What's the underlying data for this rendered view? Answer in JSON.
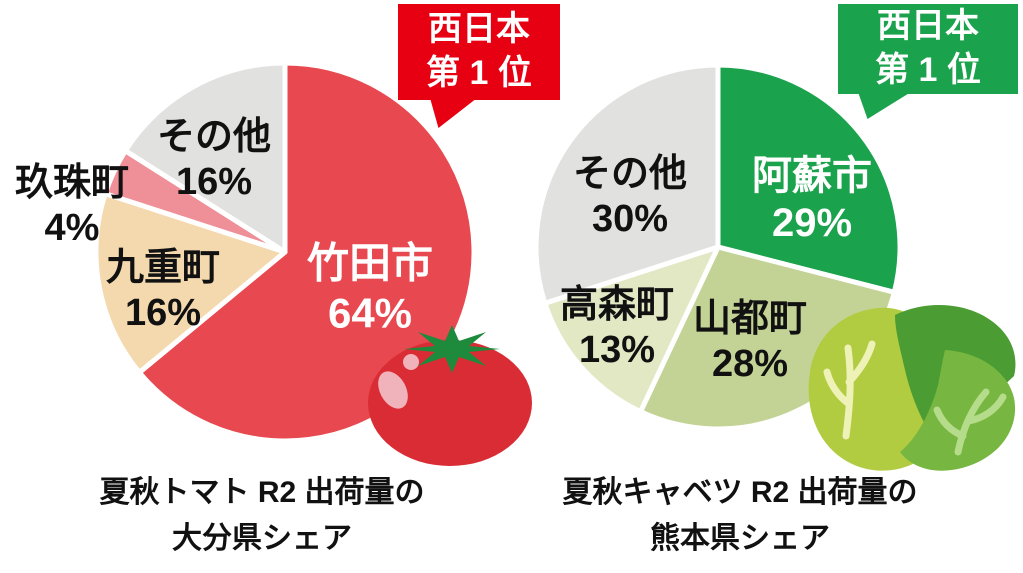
{
  "page": {
    "background": "#ffffff"
  },
  "chart_data": [
    {
      "type": "pie",
      "title": "夏秋トマト R2 出荷量の大分県シェア",
      "title_lines": [
        "夏秋トマト R2 出荷量の",
        "大分県シェア"
      ],
      "values_unit": "%",
      "start_angle": "top",
      "direction": "clockwise",
      "labels_position": "on-slices",
      "slice_divider_color": "#ffffff",
      "slices": [
        {
          "name": "竹田市",
          "value": 64,
          "pct": "64%",
          "color": "#e8484f",
          "text_color": "#ffffff"
        },
        {
          "name": "九重町",
          "value": 16,
          "pct": "16%",
          "color": "#f4d9af",
          "text_color": "#111111"
        },
        {
          "name": "玖珠町",
          "value": 4,
          "pct": "4%",
          "color": "#ef8f97",
          "text_color": "#111111"
        },
        {
          "name": "その他",
          "value": 16,
          "pct": "16%",
          "color": "#e1e1df",
          "text_color": "#111111"
        }
      ],
      "badge": {
        "lines": [
          "西日本",
          "第 1 位"
        ],
        "color": "#e60012",
        "text_color": "#ffffff"
      }
    },
    {
      "type": "pie",
      "title": "夏秋キャベツ R2 出荷量の熊本県シェア",
      "title_lines": [
        "夏秋キャベツ R2 出荷量の",
        "熊本県シェア"
      ],
      "values_unit": "%",
      "start_angle": "top",
      "direction": "clockwise",
      "labels_position": "on-slices",
      "slice_divider_color": "#ffffff",
      "slices": [
        {
          "name": "阿蘇市",
          "value": 29,
          "pct": "29%",
          "color": "#1ba24c",
          "text_color": "#ffffff"
        },
        {
          "name": "山都町",
          "value": 28,
          "pct": "28%",
          "color": "#c3d396",
          "text_color": "#111111"
        },
        {
          "name": "高森町",
          "value": 13,
          "pct": "13%",
          "color": "#e2e8c4",
          "text_color": "#111111"
        },
        {
          "name": "その他",
          "value": 30,
          "pct": "30%",
          "color": "#e1e1df",
          "text_color": "#111111"
        }
      ],
      "badge": {
        "lines": [
          "西日本",
          "第 1 位"
        ],
        "color": "#1ba24c",
        "text_color": "#ffffff"
      }
    }
  ],
  "illustrations": {
    "tomato": {
      "body": "#da2c34",
      "calyx": "#1d8a3c",
      "highlight": "#f1b3bb"
    },
    "cabbage": {
      "back_leaf": "#b1cc41",
      "top_leaf": "#4a9c33",
      "front_leaf": "#77b640",
      "back_veins": "#eef2b6",
      "front_veins": "#b5dc8a"
    }
  }
}
